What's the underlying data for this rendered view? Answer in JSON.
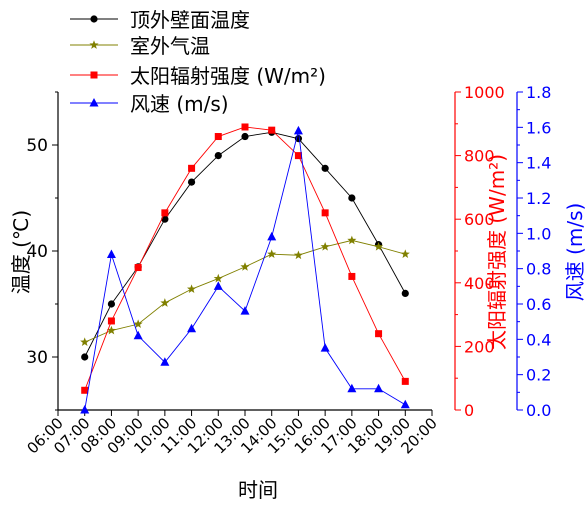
{
  "chart_data": {
    "type": "line",
    "xlabel": "时间",
    "ylabel_left": "温度 (℃)",
    "ylabel_right_red": "太阳辐射强度 (W/m²)",
    "ylabel_right_blue": "风速 (m/s)",
    "x_ticks": [
      "06:00",
      "07:00",
      "08:00",
      "09:00",
      "10:00",
      "11:00",
      "12:00",
      "13:00",
      "14:00",
      "15:00",
      "16:00",
      "17:00",
      "18:00",
      "19:00",
      "20:00"
    ],
    "y_left_ticks": [
      "30",
      "40",
      "50"
    ],
    "y_red_ticks": [
      "0",
      "200",
      "400",
      "600",
      "800",
      "1000"
    ],
    "y_blue_ticks": [
      "0.0",
      "0.2",
      "0.4",
      "0.6",
      "0.8",
      "1.0",
      "1.2",
      "1.4",
      "1.6",
      "1.8"
    ],
    "ylim_left": [
      25,
      55
    ],
    "ylim_red": [
      0,
      1000
    ],
    "ylim_blue": [
      0,
      1.8
    ],
    "legend_position": "top-left",
    "x": [
      "07:00",
      "08:00",
      "09:00",
      "10:00",
      "11:00",
      "12:00",
      "13:00",
      "14:00",
      "15:00",
      "16:00",
      "17:00",
      "18:00",
      "19:00"
    ],
    "series": [
      {
        "name": "顶外壁面温度",
        "axis": "left",
        "color": "#000000",
        "marker": "circle",
        "values": [
          30.0,
          35.0,
          38.5,
          43.0,
          46.5,
          49.0,
          50.8,
          51.2,
          50.6,
          47.8,
          45.0,
          40.6,
          36.0
        ]
      },
      {
        "name": "室外气温",
        "axis": "left",
        "color": "#808000",
        "marker": "star",
        "values": [
          31.4,
          32.5,
          33.1,
          35.1,
          36.4,
          37.4,
          38.5,
          39.7,
          39.6,
          40.4,
          41.0,
          40.4,
          39.7
        ]
      },
      {
        "name": "太阳辐射强度 (W/m²)",
        "axis": "red",
        "color": "#ff0000",
        "marker": "square",
        "values": [
          62,
          280,
          448,
          620,
          760,
          860,
          890,
          880,
          800,
          620,
          420,
          240,
          90
        ]
      },
      {
        "name": "风速 (m/s)",
        "axis": "blue",
        "color": "#0000ff",
        "marker": "triangle",
        "values": [
          0.0,
          0.88,
          0.42,
          0.27,
          0.46,
          0.7,
          0.56,
          0.98,
          1.58,
          0.35,
          0.12,
          0.12,
          0.03
        ]
      }
    ]
  }
}
